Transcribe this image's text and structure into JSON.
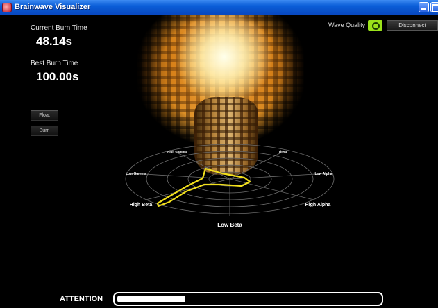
{
  "window": {
    "title": "Brainwave Visualizer"
  },
  "stats": {
    "current_label": "Current Burn Time",
    "current_value": "48.14s",
    "best_label": "Best Burn Time",
    "best_value": "100.00s"
  },
  "mode_buttons": {
    "float_label": "Float",
    "burn_label": "Burn"
  },
  "header": {
    "wave_quality_label": "Wave Quality",
    "wave_quality_icon": "signal-icon",
    "wave_quality_color": "#9be21a",
    "disconnect_label": "Disconnect"
  },
  "radar": {
    "labels": {
      "top_left": "High Gamma",
      "top_right": "Theta",
      "left": "Low Gamma",
      "right": "Low Alpha",
      "lower_left": "High Beta",
      "lower_right": "High Alpha",
      "bottom": "Low Beta"
    },
    "trace_color": "#f2e01c"
  },
  "attention": {
    "label": "ATTENTION",
    "level": 0.26
  }
}
